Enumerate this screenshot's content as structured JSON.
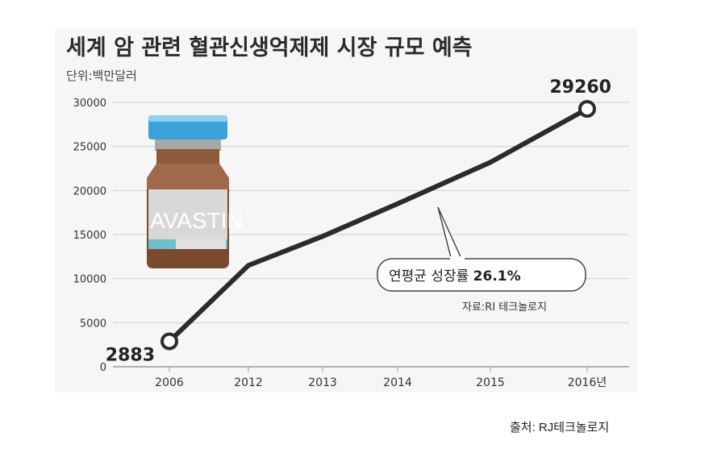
{
  "chart_data": {
    "type": "line",
    "title": "세계 암 관련 혈관신생억제제 시장 규모 예측",
    "unit": "단위:백만달러",
    "categories": [
      "2006",
      "2012",
      "2013",
      "2014",
      "2015",
      "2016년"
    ],
    "series": [
      {
        "values": [
          2883,
          11500,
          14800,
          18500,
          23200,
          29260
        ]
      }
    ],
    "ylim": [
      0,
      30000
    ],
    "yticks": [
      "0",
      "5000",
      "10000",
      "15000",
      "20000",
      "25000",
      "30000"
    ],
    "point_labels": [
      {
        "index": 0,
        "text": "2883"
      },
      {
        "index": 5,
        "text": "29260"
      }
    ],
    "callout": {
      "prefix": "연평균 성장률 ",
      "value": "26.1%"
    },
    "source_inner": "자료:RI 테크놀로지",
    "grid": true,
    "line_color": "#2b2b2b",
    "image_label": "AVASTIN"
  },
  "source_outer": "출처: RJ테크놀로지"
}
